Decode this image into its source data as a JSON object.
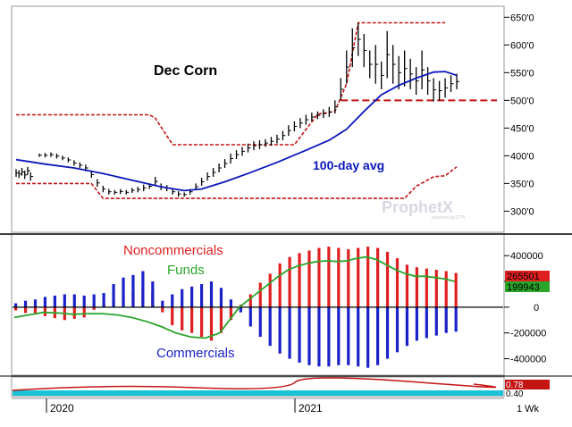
{
  "colors": {
    "price_bar": "#000000",
    "moving_average": "#0a17b8",
    "channel": "#c41414",
    "noncommercials": "#e02020",
    "commercials": "#1a22c8",
    "funds": "#2aa52a",
    "zero_line": "#000000",
    "axis_grid": "#cccccc",
    "bottom_ribbon": "#19c3d6"
  },
  "chart_data": [
    {
      "id": "price",
      "type": "ohlc-bar",
      "title": "Dec Corn",
      "annotation": "100-day avg",
      "watermark": "ProphetX",
      "watermark_sub": "powered by DTN",
      "y_ticks": [
        "650'0",
        "600'0",
        "550'0",
        "500'0",
        "450'0",
        "400'0",
        "350'0",
        "300'0"
      ],
      "y_tick_values": [
        650,
        600,
        550,
        500,
        450,
        400,
        350,
        300
      ],
      "ylim": [
        270,
        665
      ],
      "bars": [
        [
          0,
          362,
          376
        ],
        [
          1,
          360,
          374
        ],
        [
          2,
          364,
          378
        ],
        [
          3,
          358,
          373
        ],
        [
          4,
          366,
          380
        ],
        [
          5,
          355,
          370
        ],
        [
          8,
          398,
          404
        ],
        [
          10,
          397,
          405
        ],
        [
          12,
          398,
          406
        ],
        [
          14,
          395,
          404
        ],
        [
          16,
          392,
          400
        ],
        [
          18,
          388,
          397
        ],
        [
          20,
          382,
          392
        ],
        [
          22,
          378,
          388
        ],
        [
          24,
          372,
          384
        ],
        [
          26,
          360,
          372
        ],
        [
          28,
          344,
          358
        ],
        [
          30,
          334,
          346
        ],
        [
          32,
          330,
          340
        ],
        [
          34,
          330,
          338
        ],
        [
          36,
          331,
          340
        ],
        [
          38,
          330,
          338
        ],
        [
          40,
          333,
          342
        ],
        [
          42,
          334,
          344
        ],
        [
          44,
          336,
          348
        ],
        [
          46,
          340,
          350
        ],
        [
          48,
          345,
          362
        ],
        [
          50,
          338,
          350
        ],
        [
          52,
          336,
          347
        ],
        [
          54,
          330,
          340
        ],
        [
          56,
          326,
          336
        ],
        [
          58,
          326,
          334
        ],
        [
          60,
          330,
          340
        ],
        [
          62,
          338,
          350
        ],
        [
          64,
          346,
          360
        ],
        [
          66,
          355,
          370
        ],
        [
          68,
          362,
          378
        ],
        [
          70,
          370,
          386
        ],
        [
          72,
          378,
          394
        ],
        [
          74,
          386,
          404
        ],
        [
          76,
          394,
          410
        ],
        [
          78,
          400,
          416
        ],
        [
          80,
          406,
          422
        ],
        [
          82,
          410,
          426
        ],
        [
          84,
          412,
          428
        ],
        [
          86,
          416,
          430
        ],
        [
          88,
          418,
          434
        ],
        [
          90,
          422,
          438
        ],
        [
          92,
          428,
          445
        ],
        [
          94,
          436,
          455
        ],
        [
          96,
          444,
          462
        ],
        [
          98,
          450,
          468
        ],
        [
          100,
          456,
          474
        ],
        [
          102,
          462,
          478
        ],
        [
          104,
          466,
          480
        ],
        [
          106,
          468,
          484
        ],
        [
          108,
          470,
          488
        ],
        [
          110,
          476,
          500
        ],
        [
          112,
          500,
          540
        ],
        [
          114,
          530,
          590
        ],
        [
          116,
          560,
          630
        ],
        [
          118,
          580,
          640
        ],
        [
          120,
          560,
          620
        ],
        [
          122,
          540,
          590
        ],
        [
          124,
          530,
          600
        ],
        [
          126,
          520,
          570
        ],
        [
          128,
          540,
          625
        ],
        [
          130,
          530,
          600
        ],
        [
          132,
          520,
          580
        ],
        [
          134,
          525,
          590
        ],
        [
          136,
          520,
          575
        ],
        [
          138,
          510,
          560
        ],
        [
          140,
          520,
          590
        ],
        [
          142,
          510,
          560
        ],
        [
          144,
          498,
          540
        ],
        [
          146,
          500,
          535
        ],
        [
          148,
          505,
          540
        ],
        [
          150,
          515,
          545
        ],
        [
          152,
          520,
          548
        ]
      ],
      "moving_average": [
        [
          0,
          393
        ],
        [
          10,
          385
        ],
        [
          20,
          378
        ],
        [
          30,
          368
        ],
        [
          40,
          356
        ],
        [
          50,
          344
        ],
        [
          58,
          337
        ],
        [
          64,
          340
        ],
        [
          72,
          353
        ],
        [
          80,
          368
        ],
        [
          90,
          388
        ],
        [
          100,
          410
        ],
        [
          108,
          428
        ],
        [
          114,
          448
        ],
        [
          120,
          480
        ],
        [
          126,
          510
        ],
        [
          132,
          527
        ],
        [
          138,
          540
        ],
        [
          144,
          551
        ],
        [
          148,
          552
        ],
        [
          152,
          545
        ]
      ],
      "channel_upper": [
        [
          0,
          474
        ],
        [
          46,
          474
        ],
        [
          48,
          468
        ],
        [
          54,
          420
        ],
        [
          96,
          420
        ],
        [
          104,
          475
        ],
        [
          110,
          480
        ],
        [
          114,
          530
        ],
        [
          118,
          640
        ],
        [
          148,
          640
        ]
      ],
      "channel_lower": [
        [
          0,
          350
        ],
        [
          26,
          350
        ],
        [
          30,
          323
        ],
        [
          134,
          323
        ],
        [
          138,
          345
        ],
        [
          144,
          362
        ],
        [
          148,
          364
        ],
        [
          152,
          380
        ]
      ],
      "support_level": 500,
      "support_from_x": 112
    },
    {
      "id": "positions",
      "type": "bar",
      "series_labels": [
        "Noncommercials",
        "Funds",
        "Commercials"
      ],
      "y_ticks": [
        "400000",
        "200000",
        "0",
        "-200000",
        "-400000"
      ],
      "y_tick_values": [
        400000,
        200000,
        0,
        -200000,
        -400000
      ],
      "ylim": [
        -500000,
        540000
      ],
      "last_values": {
        "noncommercials": "265501",
        "funds": "199943"
      },
      "noncommercials": [
        [
          0,
          -25000
        ],
        [
          4,
          -45000
        ],
        [
          8,
          -55000
        ],
        [
          12,
          -70000
        ],
        [
          16,
          -85000
        ],
        [
          20,
          -100000
        ],
        [
          24,
          -90000
        ],
        [
          28,
          -80000
        ],
        [
          32,
          -20000
        ],
        [
          36,
          30000
        ],
        [
          40,
          60000
        ],
        [
          44,
          90000
        ],
        [
          48,
          120000
        ],
        [
          52,
          140000
        ],
        [
          56,
          120000
        ],
        [
          60,
          -40000
        ],
        [
          64,
          -140000
        ],
        [
          68,
          -180000
        ],
        [
          72,
          -200000
        ],
        [
          76,
          -230000
        ],
        [
          80,
          -260000
        ],
        [
          84,
          -200000
        ],
        [
          88,
          -100000
        ],
        [
          92,
          20000
        ],
        [
          96,
          100000
        ],
        [
          100,
          190000
        ],
        [
          104,
          260000
        ],
        [
          108,
          340000
        ],
        [
          112,
          390000
        ],
        [
          116,
          420000
        ],
        [
          120,
          440000
        ],
        [
          124,
          460000
        ],
        [
          128,
          470000
        ],
        [
          132,
          460000
        ],
        [
          136,
          450000
        ],
        [
          140,
          460000
        ],
        [
          144,
          470000
        ],
        [
          148,
          460000
        ],
        [
          152,
          430000
        ],
        [
          156,
          380000
        ],
        [
          160,
          330000
        ],
        [
          164,
          310000
        ],
        [
          168,
          300000
        ],
        [
          172,
          290000
        ],
        [
          176,
          280000
        ],
        [
          180,
          265501
        ]
      ],
      "commercials": [
        [
          0,
          30000
        ],
        [
          4,
          50000
        ],
        [
          8,
          60000
        ],
        [
          12,
          80000
        ],
        [
          16,
          90000
        ],
        [
          20,
          100000
        ],
        [
          24,
          100000
        ],
        [
          28,
          90000
        ],
        [
          32,
          100000
        ],
        [
          36,
          110000
        ],
        [
          40,
          180000
        ],
        [
          44,
          230000
        ],
        [
          48,
          250000
        ],
        [
          52,
          280000
        ],
        [
          56,
          200000
        ],
        [
          60,
          50000
        ],
        [
          64,
          100000
        ],
        [
          68,
          140000
        ],
        [
          72,
          160000
        ],
        [
          76,
          180000
        ],
        [
          80,
          200000
        ],
        [
          84,
          150000
        ],
        [
          88,
          60000
        ],
        [
          92,
          -40000
        ],
        [
          96,
          -150000
        ],
        [
          100,
          -230000
        ],
        [
          104,
          -300000
        ],
        [
          108,
          -360000
        ],
        [
          112,
          -400000
        ],
        [
          116,
          -430000
        ],
        [
          120,
          -450000
        ],
        [
          124,
          -460000
        ],
        [
          128,
          -460000
        ],
        [
          132,
          -450000
        ],
        [
          136,
          -450000
        ],
        [
          140,
          -460000
        ],
        [
          144,
          -470000
        ],
        [
          148,
          -450000
        ],
        [
          152,
          -400000
        ],
        [
          156,
          -350000
        ],
        [
          160,
          -300000
        ],
        [
          164,
          -260000
        ],
        [
          168,
          -240000
        ],
        [
          172,
          -220000
        ],
        [
          176,
          -200000
        ],
        [
          180,
          -190000
        ]
      ],
      "funds": [
        [
          0,
          -80000
        ],
        [
          6,
          -60000
        ],
        [
          12,
          -40000
        ],
        [
          18,
          -45000
        ],
        [
          24,
          -55000
        ],
        [
          30,
          -50000
        ],
        [
          36,
          -50000
        ],
        [
          42,
          -60000
        ],
        [
          48,
          -80000
        ],
        [
          54,
          -110000
        ],
        [
          60,
          -150000
        ],
        [
          66,
          -200000
        ],
        [
          72,
          -230000
        ],
        [
          78,
          -240000
        ],
        [
          84,
          -200000
        ],
        [
          88,
          -100000
        ],
        [
          92,
          0
        ],
        [
          96,
          60000
        ],
        [
          100,
          120000
        ],
        [
          104,
          180000
        ],
        [
          108,
          240000
        ],
        [
          112,
          290000
        ],
        [
          116,
          320000
        ],
        [
          120,
          340000
        ],
        [
          124,
          355000
        ],
        [
          128,
          360000
        ],
        [
          132,
          355000
        ],
        [
          136,
          360000
        ],
        [
          140,
          380000
        ],
        [
          144,
          390000
        ],
        [
          148,
          370000
        ],
        [
          152,
          330000
        ],
        [
          156,
          290000
        ],
        [
          160,
          260000
        ],
        [
          164,
          240000
        ],
        [
          168,
          240000
        ],
        [
          172,
          230000
        ],
        [
          176,
          220000
        ],
        [
          180,
          199943
        ]
      ]
    },
    {
      "id": "indicator",
      "type": "line",
      "y_labels": [
        "0.78",
        "0.40"
      ],
      "x_ticks": [
        "2020",
        "2021",
        "1 Wk"
      ]
    }
  ]
}
